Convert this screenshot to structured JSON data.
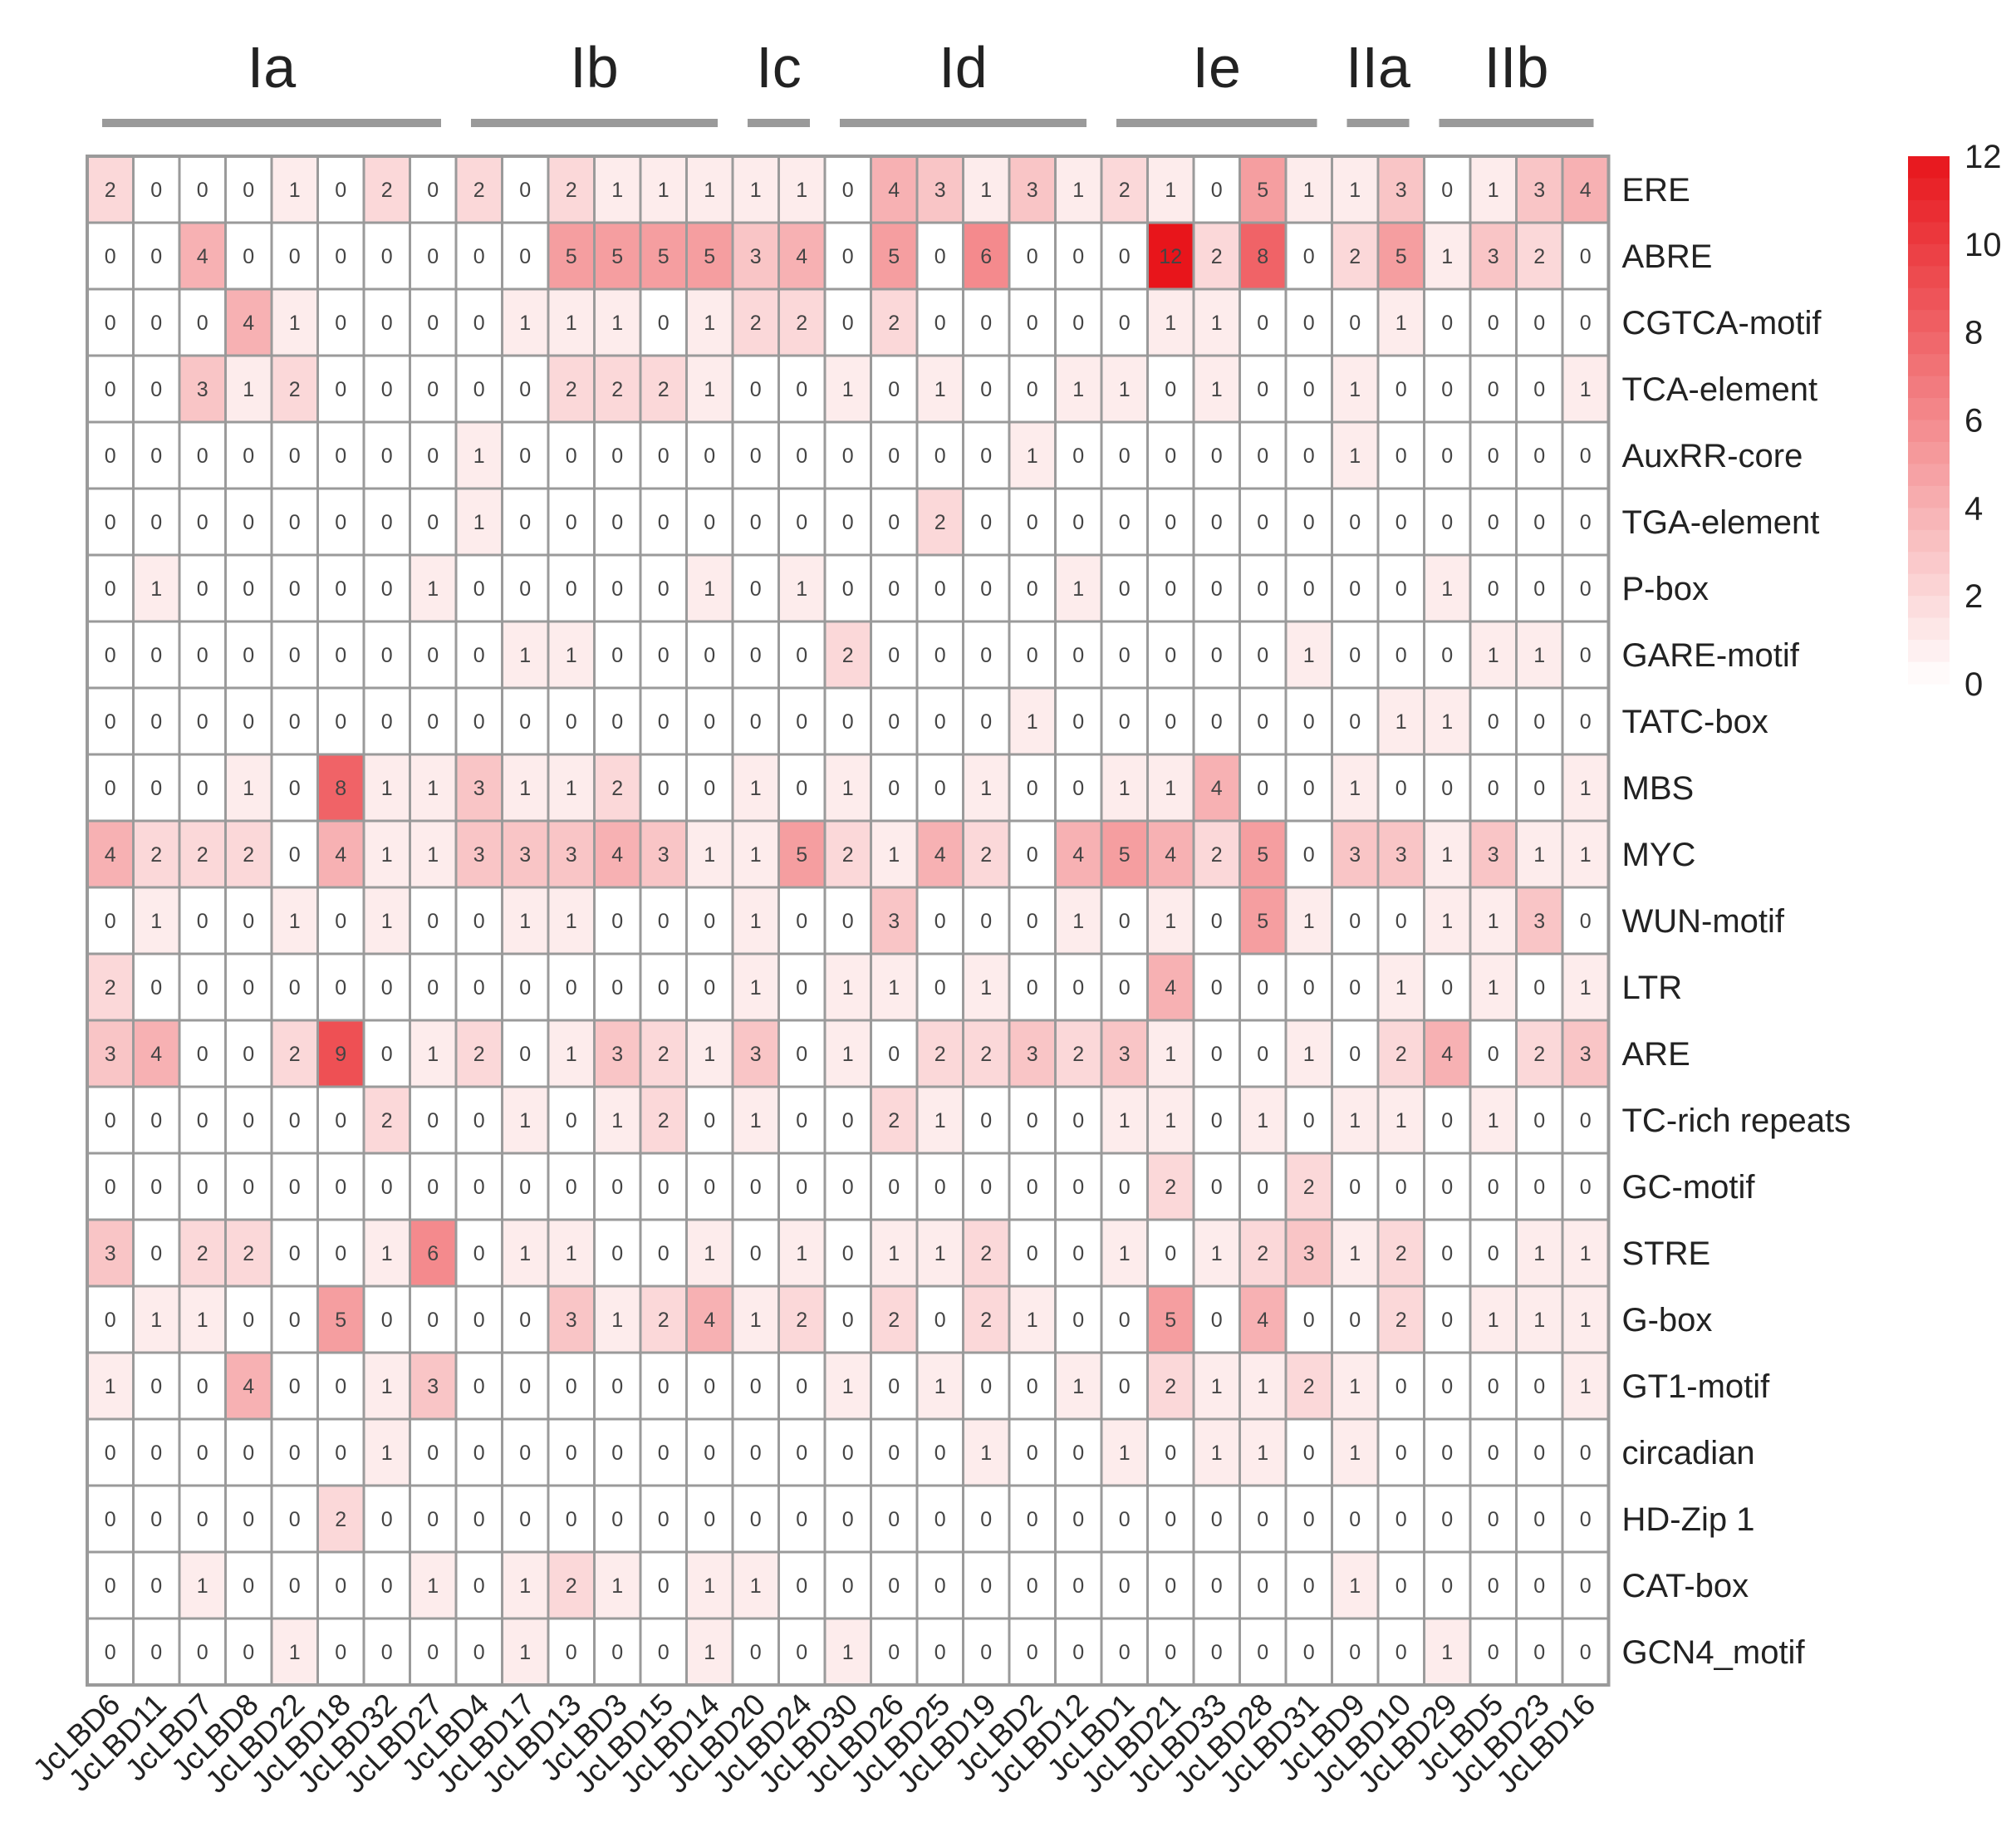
{
  "chart_data": {
    "type": "heatmap",
    "title": "",
    "columns": [
      "JcLBD6",
      "JcLBD11",
      "JcLBD7",
      "JcLBD8",
      "JcLBD22",
      "JcLBD18",
      "JcLBD32",
      "JcLBD27",
      "JcLBD4",
      "JcLBD17",
      "JcLBD13",
      "JcLBD3",
      "JcLBD15",
      "JcLBD14",
      "JcLBD20",
      "JcLBD24",
      "JcLBD30",
      "JcLBD26",
      "JcLBD25",
      "JcLBD19",
      "JcLBD2",
      "JcLBD12",
      "JcLBD1",
      "JcLBD21",
      "JcLBD33",
      "JcLBD28",
      "JcLBD31",
      "JcLBD9",
      "JcLBD10",
      "JcLBD29",
      "JcLBD5",
      "JcLBD23",
      "JcLBD16"
    ],
    "rows": [
      "ERE",
      "ABRE",
      "CGTCA-motif",
      "TCA-element",
      "AuxRR-core",
      "TGA-element",
      "P-box",
      "GARE-motif",
      "TATC-box",
      "MBS",
      "MYC",
      "WUN-motif",
      "LTR",
      "ARE",
      "TC-rich repeats",
      "GC-motif",
      "STRE",
      "G-box",
      "GT1-motif",
      "circadian",
      "HD-Zip 1",
      "CAT-box",
      "GCN4_motif"
    ],
    "groups": [
      {
        "label": "Ia",
        "first": 0,
        "last": 7
      },
      {
        "label": "Ib",
        "first": 8,
        "last": 13
      },
      {
        "label": "Ic",
        "first": 14,
        "last": 15
      },
      {
        "label": "Id",
        "first": 16,
        "last": 21
      },
      {
        "label": "Ie",
        "first": 22,
        "last": 26
      },
      {
        "label": "IIa",
        "first": 27,
        "last": 28
      },
      {
        "label": "IIb",
        "first": 29,
        "last": 32
      }
    ],
    "values": [
      [
        2,
        0,
        0,
        0,
        1,
        0,
        2,
        0,
        2,
        0,
        2,
        1,
        1,
        1,
        1,
        1,
        0,
        4,
        3,
        1,
        3,
        1,
        2,
        1,
        0,
        5,
        1,
        1,
        3,
        0,
        1,
        3,
        4
      ],
      [
        0,
        0,
        4,
        0,
        0,
        0,
        0,
        0,
        0,
        0,
        5,
        5,
        5,
        5,
        3,
        4,
        0,
        5,
        0,
        6,
        0,
        0,
        0,
        12,
        2,
        8,
        0,
        2,
        5,
        1,
        3,
        2,
        0
      ],
      [
        0,
        0,
        0,
        4,
        1,
        0,
        0,
        0,
        0,
        1,
        1,
        1,
        0,
        1,
        2,
        2,
        0,
        2,
        0,
        0,
        0,
        0,
        0,
        1,
        1,
        0,
        0,
        0,
        1,
        0,
        0,
        0,
        0
      ],
      [
        0,
        0,
        3,
        1,
        2,
        0,
        0,
        0,
        0,
        0,
        2,
        2,
        2,
        1,
        0,
        0,
        1,
        0,
        1,
        0,
        0,
        1,
        1,
        0,
        1,
        0,
        0,
        1,
        0,
        0,
        0,
        0,
        1
      ],
      [
        0,
        0,
        0,
        0,
        0,
        0,
        0,
        0,
        1,
        0,
        0,
        0,
        0,
        0,
        0,
        0,
        0,
        0,
        0,
        0,
        1,
        0,
        0,
        0,
        0,
        0,
        0,
        1,
        0,
        0,
        0,
        0,
        0
      ],
      [
        0,
        0,
        0,
        0,
        0,
        0,
        0,
        0,
        1,
        0,
        0,
        0,
        0,
        0,
        0,
        0,
        0,
        0,
        2,
        0,
        0,
        0,
        0,
        0,
        0,
        0,
        0,
        0,
        0,
        0,
        0,
        0,
        0
      ],
      [
        0,
        1,
        0,
        0,
        0,
        0,
        0,
        1,
        0,
        0,
        0,
        0,
        0,
        1,
        0,
        1,
        0,
        0,
        0,
        0,
        0,
        1,
        0,
        0,
        0,
        0,
        0,
        0,
        0,
        1,
        0,
        0,
        0
      ],
      [
        0,
        0,
        0,
        0,
        0,
        0,
        0,
        0,
        0,
        1,
        1,
        0,
        0,
        0,
        0,
        0,
        2,
        0,
        0,
        0,
        0,
        0,
        0,
        0,
        0,
        0,
        1,
        0,
        0,
        0,
        1,
        1,
        0
      ],
      [
        0,
        0,
        0,
        0,
        0,
        0,
        0,
        0,
        0,
        0,
        0,
        0,
        0,
        0,
        0,
        0,
        0,
        0,
        0,
        0,
        1,
        0,
        0,
        0,
        0,
        0,
        0,
        0,
        1,
        1,
        0,
        0,
        0
      ],
      [
        0,
        0,
        0,
        1,
        0,
        8,
        1,
        1,
        3,
        1,
        1,
        2,
        0,
        0,
        1,
        0,
        1,
        0,
        0,
        1,
        0,
        0,
        1,
        1,
        4,
        0,
        0,
        1,
        0,
        0,
        0,
        0,
        1
      ],
      [
        4,
        2,
        2,
        2,
        0,
        4,
        1,
        1,
        3,
        3,
        3,
        4,
        3,
        1,
        1,
        5,
        2,
        1,
        4,
        2,
        0,
        4,
        5,
        4,
        2,
        5,
        0,
        3,
        3,
        1,
        3,
        1,
        1
      ],
      [
        0,
        1,
        0,
        0,
        1,
        0,
        1,
        0,
        0,
        1,
        1,
        0,
        0,
        0,
        1,
        0,
        0,
        3,
        0,
        0,
        0,
        1,
        0,
        1,
        0,
        5,
        1,
        0,
        0,
        1,
        1,
        3,
        0
      ],
      [
        2,
        0,
        0,
        0,
        0,
        0,
        0,
        0,
        0,
        0,
        0,
        0,
        0,
        0,
        1,
        0,
        1,
        1,
        0,
        1,
        0,
        0,
        0,
        4,
        0,
        0,
        0,
        0,
        1,
        0,
        1,
        0,
        1
      ],
      [
        3,
        4,
        0,
        0,
        2,
        9,
        0,
        1,
        2,
        0,
        1,
        3,
        2,
        1,
        3,
        0,
        1,
        0,
        2,
        2,
        3,
        2,
        3,
        1,
        0,
        0,
        1,
        0,
        2,
        4,
        0,
        2,
        3
      ],
      [
        0,
        0,
        0,
        0,
        0,
        0,
        2,
        0,
        0,
        1,
        0,
        1,
        2,
        0,
        1,
        0,
        0,
        2,
        1,
        0,
        0,
        0,
        1,
        1,
        0,
        1,
        0,
        1,
        1,
        0,
        1,
        0,
        0
      ],
      [
        0,
        0,
        0,
        0,
        0,
        0,
        0,
        0,
        0,
        0,
        0,
        0,
        0,
        0,
        0,
        0,
        0,
        0,
        0,
        0,
        0,
        0,
        0,
        2,
        0,
        0,
        2,
        0,
        0,
        0,
        0,
        0,
        0
      ],
      [
        3,
        0,
        2,
        2,
        0,
        0,
        1,
        6,
        0,
        1,
        1,
        0,
        0,
        1,
        0,
        1,
        0,
        1,
        1,
        2,
        0,
        0,
        1,
        0,
        1,
        2,
        3,
        1,
        2,
        0,
        0,
        1,
        1
      ],
      [
        0,
        1,
        1,
        0,
        0,
        5,
        0,
        0,
        0,
        0,
        3,
        1,
        2,
        4,
        1,
        2,
        0,
        2,
        0,
        2,
        1,
        0,
        0,
        5,
        0,
        4,
        0,
        0,
        2,
        0,
        1,
        1,
        1
      ],
      [
        1,
        0,
        0,
        4,
        0,
        0,
        1,
        3,
        0,
        0,
        0,
        0,
        0,
        0,
        0,
        0,
        1,
        0,
        1,
        0,
        0,
        1,
        0,
        2,
        1,
        1,
        2,
        1,
        0,
        0,
        0,
        0,
        1
      ],
      [
        0,
        0,
        0,
        0,
        0,
        0,
        1,
        0,
        0,
        0,
        0,
        0,
        0,
        0,
        0,
        0,
        0,
        0,
        0,
        1,
        0,
        0,
        1,
        0,
        1,
        1,
        0,
        1,
        0,
        0,
        0,
        0,
        0
      ],
      [
        0,
        0,
        0,
        0,
        0,
        2,
        0,
        0,
        0,
        0,
        0,
        0,
        0,
        0,
        0,
        0,
        0,
        0,
        0,
        0,
        0,
        0,
        0,
        0,
        0,
        0,
        0,
        0,
        0,
        0,
        0,
        0,
        0
      ],
      [
        0,
        0,
        1,
        0,
        0,
        0,
        0,
        1,
        0,
        1,
        2,
        1,
        0,
        1,
        1,
        0,
        0,
        0,
        0,
        0,
        0,
        0,
        0,
        0,
        0,
        0,
        0,
        1,
        0,
        0,
        0,
        0,
        0
      ],
      [
        0,
        0,
        0,
        0,
        1,
        0,
        0,
        0,
        0,
        1,
        0,
        0,
        0,
        1,
        0,
        0,
        1,
        0,
        0,
        0,
        0,
        0,
        0,
        0,
        0,
        0,
        0,
        0,
        0,
        1,
        0,
        0,
        0
      ]
    ],
    "color_scale": {
      "min": 0,
      "max": 12,
      "low_color": "#ffffff",
      "high_color": "#e8151b",
      "ticks": [
        0,
        2,
        4,
        6,
        8,
        10,
        12
      ]
    },
    "colors": {
      "grid": "#9a9a9a",
      "group_bar": "#9a9a9a",
      "text": "#222222",
      "cell_text": "#444444"
    },
    "legend": "right"
  }
}
